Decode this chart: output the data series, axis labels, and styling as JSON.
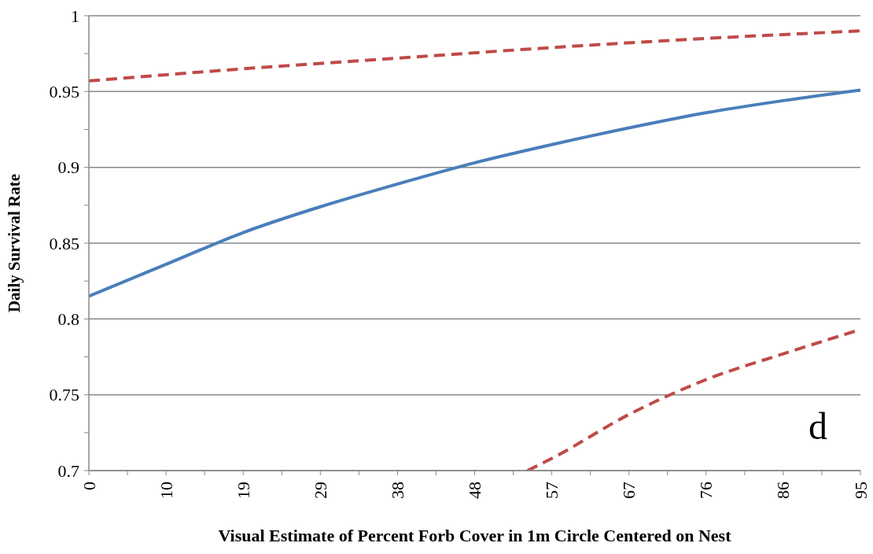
{
  "chart_data": {
    "type": "line",
    "xlabel": "Visual Estimate of Percent Forb Cover in 1m Circle Centered on Nest",
    "ylabel": "Daily Survival Rate",
    "annotations": [
      "d"
    ],
    "xlim": [
      0,
      95
    ],
    "xticks": [
      0,
      {
        "value": 4.75,
        "label": null
      },
      {
        "value": 9.5,
        "label": "10"
      },
      {
        "value": 14.25,
        "label": null
      },
      19,
      {
        "value": 23.75,
        "label": null
      },
      {
        "value": 28.5,
        "label": "29"
      },
      {
        "value": 33.25,
        "label": null
      },
      38,
      {
        "value": 42.75,
        "label": null
      },
      {
        "value": 47.5,
        "label": "48"
      },
      {
        "value": 52.25,
        "label": null
      },
      57,
      {
        "value": 61.75,
        "label": null
      },
      {
        "value": 66.5,
        "label": "67"
      },
      {
        "value": 71.25,
        "label": null
      },
      76,
      {
        "value": 80.75,
        "label": null
      },
      {
        "value": 85.5,
        "label": "86"
      },
      {
        "value": 90.25,
        "label": null
      },
      95
    ],
    "ylim": [
      0.7,
      1
    ],
    "yticks": [
      0.7,
      {
        "value": 0.725,
        "label": null
      },
      0.75,
      {
        "value": 0.775,
        "label": null
      },
      0.8,
      {
        "value": 0.825,
        "label": null
      },
      0.85,
      {
        "value": 0.875,
        "label": null
      },
      0.9,
      {
        "value": 0.925,
        "label": null
      },
      0.95,
      {
        "value": 0.975,
        "label": null
      },
      1
    ],
    "grid": "y",
    "marker": "none",
    "series": [
      {
        "color": "#4a7ebb",
        "line_style": "solid",
        "x": [
          0,
          9.5,
          19,
          28.5,
          38,
          47.5,
          57,
          66.5,
          76,
          85.5,
          95
        ],
        "values": [
          0.815,
          0.836,
          0.857,
          0.874,
          0.889,
          0.903,
          0.915,
          0.926,
          0.936,
          0.944,
          0.951
        ]
      },
      {
        "color": "#be4b48",
        "line_style": "dashed",
        "x": [
          0,
          19,
          38,
          57,
          76,
          95
        ],
        "values": [
          0.957,
          0.965,
          0.972,
          0.979,
          0.985,
          0.99
        ]
      },
      {
        "color": "#be4b48",
        "line_style": "dashed",
        "x": [
          54,
          57,
          66.5,
          76,
          85.5,
          95
        ],
        "values": [
          0.7,
          0.708,
          0.737,
          0.76,
          0.777,
          0.793
        ]
      }
    ]
  }
}
